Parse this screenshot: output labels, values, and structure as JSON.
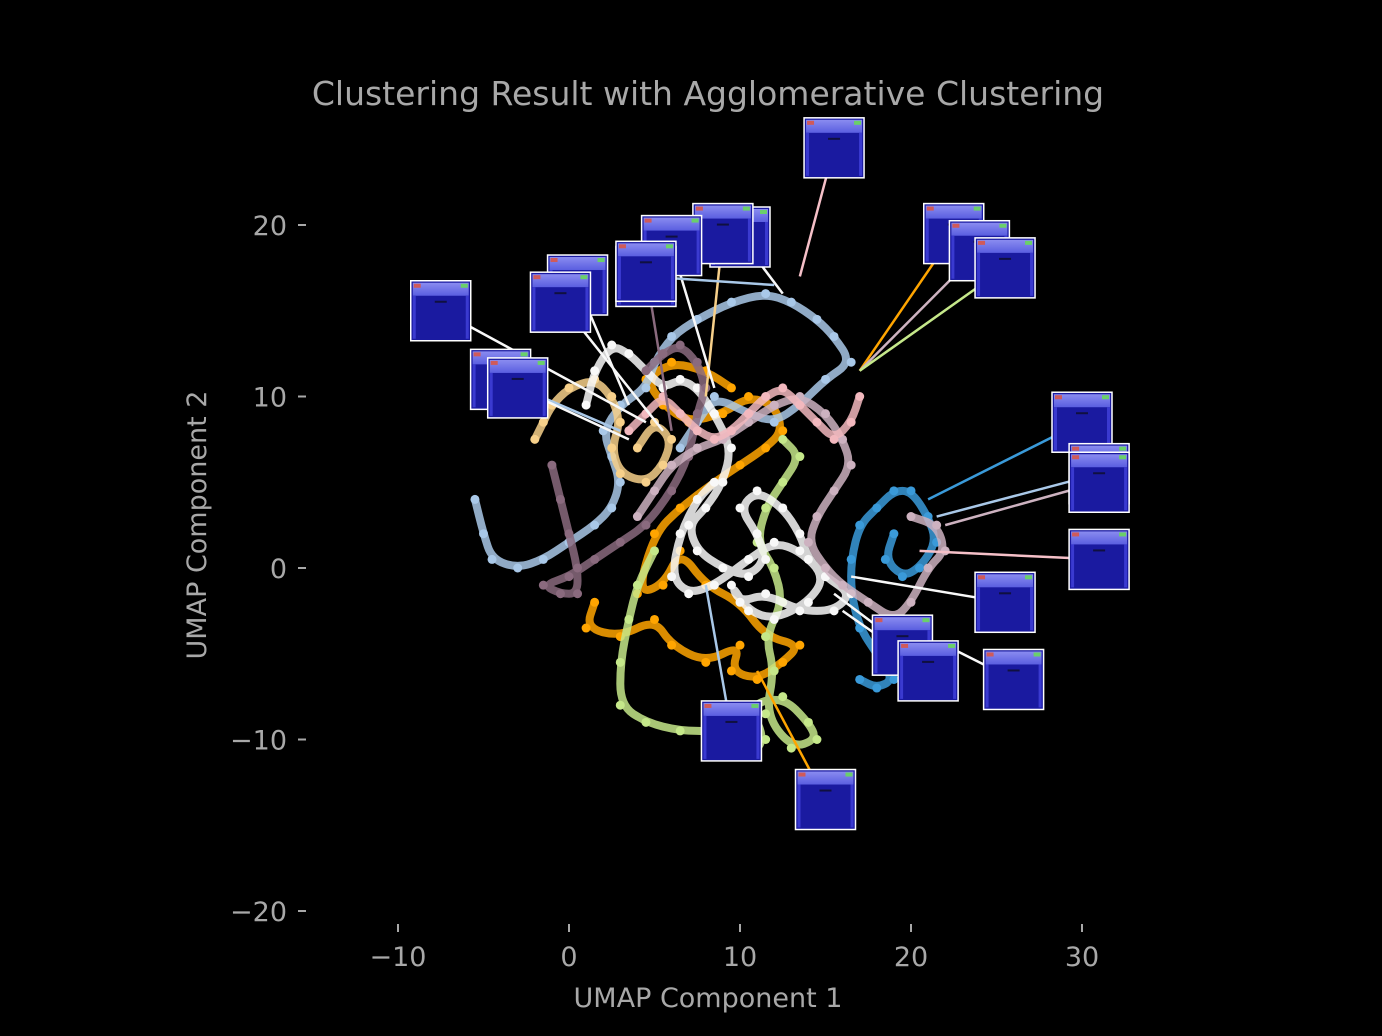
{
  "chart_data": {
    "type": "scatter",
    "title": "Clustering Result with Agglomerative Clustering",
    "xlabel": "UMAP Component 1",
    "ylabel": "UMAP Component 2",
    "xlim": [
      -14,
      36
    ],
    "ylim": [
      -21,
      25
    ],
    "x_ticks": [
      {
        "v": -10,
        "t": "−10"
      },
      {
        "v": 0,
        "t": "0"
      },
      {
        "v": 10,
        "t": "10"
      },
      {
        "v": 20,
        "t": "20"
      },
      {
        "v": 30,
        "t": "30"
      }
    ],
    "y_ticks": [
      {
        "v": 20,
        "t": "20"
      },
      {
        "v": 10,
        "t": "10"
      },
      {
        "v": 0,
        "t": "0"
      },
      {
        "v": -10,
        "t": "−10"
      },
      {
        "v": -20,
        "t": "−20"
      }
    ],
    "grid": false,
    "legend": "none",
    "series": [
      {
        "color": "#ffa500",
        "points": [
          [
            1.5,
            -2
          ],
          [
            1,
            -3.5
          ],
          [
            3,
            -4
          ],
          [
            5,
            -3
          ],
          [
            6,
            -4.5
          ],
          [
            8,
            -5.5
          ],
          [
            10,
            -4.5
          ],
          [
            9.5,
            -6
          ],
          [
            11,
            -6.5
          ],
          [
            12.5,
            -5.5
          ],
          [
            13.5,
            -4.5
          ],
          [
            11.5,
            -4
          ],
          [
            10,
            -2
          ],
          [
            8,
            -1
          ],
          [
            6.5,
            1
          ],
          [
            5.5,
            -1
          ],
          [
            4,
            -1.5
          ],
          [
            5,
            2
          ],
          [
            6.5,
            3.5
          ],
          [
            8.5,
            5
          ],
          [
            10,
            6
          ],
          [
            11.5,
            7
          ],
          [
            12.5,
            8
          ],
          [
            12,
            9.5
          ],
          [
            10.5,
            10
          ],
          [
            9,
            9
          ],
          [
            7,
            8.5
          ],
          [
            5.5,
            9.5
          ],
          [
            4.5,
            11
          ],
          [
            6,
            12
          ],
          [
            8,
            11.5
          ],
          [
            9.5,
            10.5
          ]
        ]
      },
      {
        "color": "#c5e88a",
        "points": [
          [
            5,
            1
          ],
          [
            4,
            -1
          ],
          [
            3.5,
            -3
          ],
          [
            3,
            -5.5
          ],
          [
            3,
            -8
          ],
          [
            4.5,
            -9
          ],
          [
            6.5,
            -9.5
          ],
          [
            8.5,
            -9.5
          ],
          [
            9,
            -10.5
          ],
          [
            10.5,
            -11
          ],
          [
            11.5,
            -10
          ],
          [
            10.5,
            -8
          ],
          [
            12.5,
            -7.5
          ],
          [
            14,
            -9
          ],
          [
            14.5,
            -10
          ],
          [
            13,
            -10.5
          ],
          [
            11.5,
            -8.5
          ],
          [
            12,
            -6
          ],
          [
            11.5,
            -4
          ],
          [
            12.5,
            -2
          ],
          [
            12,
            0
          ],
          [
            11,
            1.5
          ],
          [
            11.5,
            3.5
          ],
          [
            12.5,
            5
          ],
          [
            13.5,
            6.5
          ],
          [
            12.5,
            7.5
          ]
        ]
      },
      {
        "color": "#3a9ad9",
        "points": [
          [
            17,
            -6.5
          ],
          [
            18,
            -7
          ],
          [
            19,
            -6.5
          ],
          [
            18,
            -5
          ],
          [
            17,
            -3.5
          ],
          [
            16.5,
            -1.5
          ],
          [
            16.5,
            0.5
          ],
          [
            17,
            2.5
          ],
          [
            18,
            3.5
          ],
          [
            19,
            4.5
          ],
          [
            20,
            4.5
          ],
          [
            21,
            3
          ],
          [
            21.5,
            1.5
          ],
          [
            20.5,
            0
          ],
          [
            19.5,
            -0.5
          ],
          [
            18.5,
            0.5
          ],
          [
            19,
            2
          ]
        ]
      },
      {
        "color": "#a9c8e8",
        "points": [
          [
            -5.5,
            4
          ],
          [
            -5,
            2
          ],
          [
            -4.5,
            0.5
          ],
          [
            -3,
            0
          ],
          [
            -1.5,
            0.5
          ],
          [
            0,
            1.5
          ],
          [
            1.5,
            2.5
          ],
          [
            2.5,
            3.5
          ],
          [
            3,
            5
          ],
          [
            2.5,
            6.5
          ],
          [
            2,
            8
          ],
          [
            3,
            9.5
          ],
          [
            4.5,
            10.5
          ],
          [
            5,
            12
          ],
          [
            6,
            13.5
          ],
          [
            7.5,
            14.5
          ],
          [
            9.5,
            15.5
          ],
          [
            11.5,
            16
          ],
          [
            13,
            15.5
          ],
          [
            14.5,
            14.5
          ],
          [
            15.5,
            13.5
          ],
          [
            16.5,
            12
          ],
          [
            15,
            11
          ],
          [
            13.5,
            9.5
          ],
          [
            12,
            8.5
          ],
          [
            10.5,
            9
          ],
          [
            8.5,
            10
          ],
          [
            7.5,
            8.5
          ],
          [
            6.5,
            7
          ]
        ]
      },
      {
        "color": "#f7d08a",
        "points": [
          [
            -2,
            7.5
          ],
          [
            -1.5,
            8.5
          ],
          [
            -1,
            9.5
          ],
          [
            0,
            10.5
          ],
          [
            1.5,
            11
          ],
          [
            2.5,
            10
          ],
          [
            3,
            8.5
          ],
          [
            2.5,
            7
          ],
          [
            3,
            5.5
          ],
          [
            4.5,
            5
          ],
          [
            5.5,
            6
          ],
          [
            6,
            7.5
          ],
          [
            5,
            8.5
          ],
          [
            4,
            7
          ]
        ]
      },
      {
        "color": "#f8f8f8",
        "points": [
          [
            1,
            9.5
          ],
          [
            1.5,
            11.5
          ],
          [
            2.5,
            13
          ],
          [
            3.5,
            12.5
          ],
          [
            4.5,
            11.5
          ],
          [
            5.5,
            10.5
          ],
          [
            6.5,
            11
          ],
          [
            7.5,
            10.5
          ],
          [
            8.5,
            9
          ],
          [
            9.5,
            7
          ],
          [
            9,
            5
          ],
          [
            8,
            3.5
          ],
          [
            7,
            2.5
          ],
          [
            7.5,
            1
          ],
          [
            9,
            0
          ],
          [
            10.5,
            -0.5
          ],
          [
            11.5,
            0.5
          ],
          [
            11,
            2
          ],
          [
            10,
            3.5
          ],
          [
            11,
            4.5
          ],
          [
            12.5,
            3.5
          ],
          [
            13.5,
            2
          ],
          [
            14,
            0.5
          ],
          [
            15,
            -0.5
          ],
          [
            16.5,
            -1.5
          ],
          [
            15.5,
            -2.5
          ],
          [
            13.5,
            -2.5
          ],
          [
            11.5,
            -1.5
          ],
          [
            10,
            -2
          ],
          [
            9.5,
            -1
          ],
          [
            10.5,
            -2.5
          ],
          [
            12,
            -3
          ],
          [
            14,
            -2
          ],
          [
            15,
            -0.5
          ],
          [
            13.5,
            1
          ],
          [
            12,
            1.5
          ],
          [
            10.5,
            0.5
          ],
          [
            8.5,
            -1
          ],
          [
            7,
            -1.5
          ],
          [
            6,
            -0.5
          ],
          [
            6.5,
            2
          ],
          [
            7.5,
            4
          ],
          [
            8.5,
            5
          ]
        ]
      },
      {
        "color": "#8a6a7e",
        "points": [
          [
            -1,
            6
          ],
          [
            -0.5,
            4
          ],
          [
            0,
            2
          ],
          [
            0.5,
            0
          ],
          [
            0.5,
            -1.5
          ],
          [
            -0.5,
            -1.5
          ],
          [
            -1.5,
            -1
          ],
          [
            0,
            -0.5
          ],
          [
            1.5,
            0.5
          ],
          [
            3,
            1.5
          ],
          [
            4.5,
            2.5
          ],
          [
            6,
            4.5
          ],
          [
            7,
            6.5
          ],
          [
            7.5,
            9
          ],
          [
            8,
            10.5
          ],
          [
            7.5,
            12
          ],
          [
            6.5,
            13
          ],
          [
            5.5,
            12.5
          ],
          [
            4.5,
            11.5
          ]
        ]
      },
      {
        "color": "#cdb2c0",
        "points": [
          [
            4,
            3
          ],
          [
            5,
            4.5
          ],
          [
            6,
            6
          ],
          [
            7.5,
            7
          ],
          [
            9,
            7.5
          ],
          [
            10.5,
            8.5
          ],
          [
            12,
            9.5
          ],
          [
            13.5,
            10
          ],
          [
            15,
            9
          ],
          [
            16,
            7.5
          ],
          [
            16.5,
            6
          ],
          [
            15.5,
            4.5
          ],
          [
            14.5,
            3
          ],
          [
            14,
            1.5
          ],
          [
            15,
            0
          ],
          [
            16,
            -1
          ],
          [
            17.5,
            -2
          ],
          [
            19,
            -3
          ],
          [
            20,
            -2
          ],
          [
            21,
            0
          ],
          [
            22,
            1
          ],
          [
            21.5,
            2.5
          ],
          [
            20,
            3
          ]
        ]
      },
      {
        "color": "#f2b8be",
        "points": [
          [
            3.5,
            8
          ],
          [
            4.5,
            9
          ],
          [
            5.5,
            10
          ],
          [
            6.5,
            9
          ],
          [
            7.5,
            8
          ],
          [
            8.5,
            7.5
          ],
          [
            9.5,
            8
          ],
          [
            10.5,
            9
          ],
          [
            11.5,
            10
          ],
          [
            12.5,
            10.5
          ],
          [
            13.5,
            9.5
          ],
          [
            14.5,
            8.5
          ],
          [
            15.5,
            7.5
          ],
          [
            16.5,
            8.5
          ],
          [
            17,
            10
          ]
        ]
      }
    ],
    "thumbnails": [
      {
        "x": 15.5,
        "y": 24.5,
        "ax": 13.5,
        "ay": 17.0,
        "line": "#f5c0c8"
      },
      {
        "x": 10.0,
        "y": 19.3,
        "ax": 12.5,
        "ay": 16.0,
        "line": "#f8f8f8"
      },
      {
        "x": 9.0,
        "y": 19.5,
        "ax": 8.0,
        "ay": 10.0,
        "line": "#f7d08a"
      },
      {
        "x": 6.0,
        "y": 18.8,
        "ax": 8.5,
        "ay": 10.5,
        "line": "#f8f8f8"
      },
      {
        "x": 4.5,
        "y": 17.0,
        "ax": 12.0,
        "ay": 16.5,
        "line": "#a9c8e8"
      },
      {
        "x": 4.5,
        "y": 17.3,
        "ax": 6.0,
        "ay": 8.0,
        "line": "#8a6a7e"
      },
      {
        "x": 0.5,
        "y": 16.5,
        "ax": 3.5,
        "ay": 9.5,
        "line": "#f8f8f8"
      },
      {
        "x": -0.5,
        "y": 15.5,
        "ax": 5.5,
        "ay": 8.0,
        "line": "#f8f8f8"
      },
      {
        "x": -7.5,
        "y": 15.0,
        "ax": 4.5,
        "ay": 8.5,
        "line": "#f8f8f8"
      },
      {
        "x": -4.0,
        "y": 11.0,
        "ax": 3.0,
        "ay": 8.0,
        "line": "#a9c8e8"
      },
      {
        "x": -3.0,
        "y": 10.5,
        "ax": 3.5,
        "ay": 7.5,
        "line": "#f8f8f8"
      },
      {
        "x": 22.5,
        "y": 19.5,
        "ax": 17.0,
        "ay": 11.5,
        "line": "#ffa500"
      },
      {
        "x": 24.0,
        "y": 18.5,
        "ax": 17.0,
        "ay": 11.5,
        "line": "#cdb2c0"
      },
      {
        "x": 25.5,
        "y": 17.5,
        "ax": 17.0,
        "ay": 11.5,
        "line": "#c5e88a"
      },
      {
        "x": 30.0,
        "y": 8.5,
        "ax": 21.0,
        "ay": 4.0,
        "line": "#3a9ad9"
      },
      {
        "x": 31.0,
        "y": 5.5,
        "ax": 21.5,
        "ay": 3.0,
        "line": "#a9c8e8"
      },
      {
        "x": 31.0,
        "y": 5.0,
        "ax": 22.0,
        "ay": 2.5,
        "line": "#cdb2c0"
      },
      {
        "x": 31.0,
        "y": 0.5,
        "ax": 20.5,
        "ay": 1.0,
        "line": "#f5c0c8"
      },
      {
        "x": 25.5,
        "y": -2.0,
        "ax": 16.5,
        "ay": -0.5,
        "line": "#f8f8f8"
      },
      {
        "x": 19.5,
        "y": -4.5,
        "ax": 15.5,
        "ay": -1.5,
        "line": "#f8f8f8"
      },
      {
        "x": 21.0,
        "y": -6.0,
        "ax": 16.0,
        "ay": -2.5,
        "line": "#f8f8f8"
      },
      {
        "x": 26.0,
        "y": -6.5,
        "ax": 22.0,
        "ay": -4.5,
        "line": "#f8f8f8"
      },
      {
        "x": 9.5,
        "y": -9.5,
        "ax": 8.0,
        "ay": -1.0,
        "line": "#a9c8e8"
      },
      {
        "x": 15.0,
        "y": -13.5,
        "ax": 11.0,
        "ay": -6.0,
        "line": "#ffa500"
      }
    ]
  }
}
